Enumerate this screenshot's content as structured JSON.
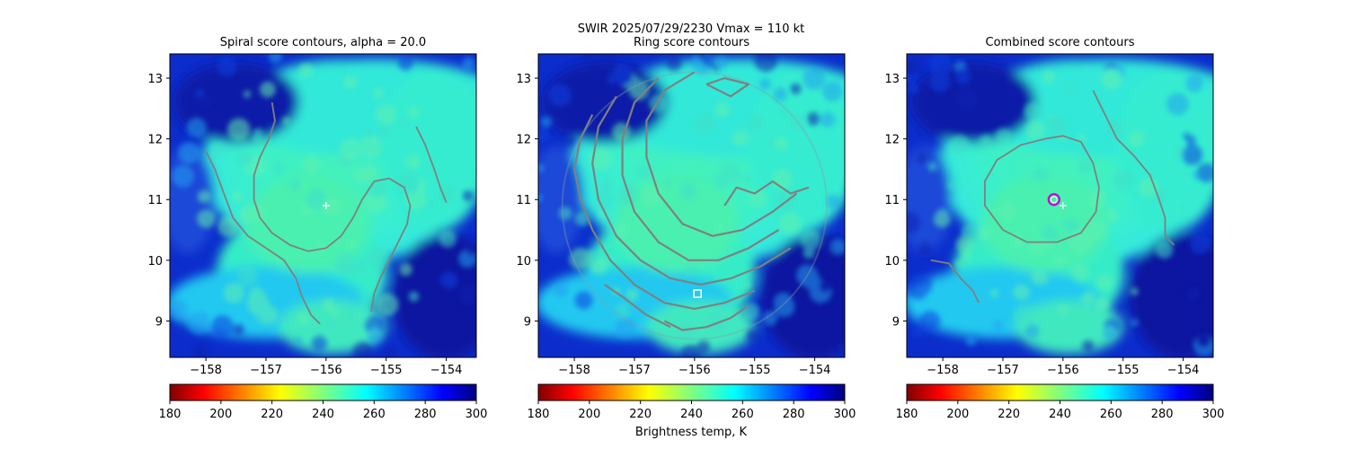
{
  "suptitle": {
    "line1": "SWIR  2025/07/29/2230    Vmax = 110 kt",
    "line2": "Ring score contours"
  },
  "colorbar_label": "Brightness temp, K",
  "colors": {
    "center_marker": "#ffffff",
    "ring_marker": "#cc00cc",
    "contour": "#808080",
    "axis": "#000000"
  },
  "chart_data": [
    {
      "type": "heatmap",
      "title": "Spiral score contours, alpha = 20.0",
      "xlim": [
        -158.6,
        -153.5
      ],
      "ylim": [
        8.4,
        13.4
      ],
      "xticks": [
        -158,
        -157,
        -156,
        -155,
        -154
      ],
      "xtick_labels": [
        "−158",
        "−157",
        "−156",
        "−155",
        "−154"
      ],
      "yticks": [
        9,
        10,
        11,
        12,
        13
      ],
      "ytick_labels": [
        "9",
        "10",
        "11",
        "12",
        "13"
      ],
      "colorbar": {
        "range": [
          180,
          300
        ],
        "ticks": [
          "180",
          "200",
          "220",
          "240",
          "260",
          "280",
          "300"
        ],
        "cmap": "jet_r"
      },
      "markers": [
        {
          "kind": "plus",
          "x": -156.0,
          "y": 10.9
        }
      ],
      "contours": [
        [
          [
            -156.9,
            12.6
          ],
          [
            -156.85,
            12.3
          ],
          [
            -156.95,
            12.0
          ],
          [
            -157.1,
            11.7
          ],
          [
            -157.2,
            11.4
          ],
          [
            -157.2,
            11.0
          ],
          [
            -157.1,
            10.7
          ],
          [
            -156.9,
            10.45
          ],
          [
            -156.6,
            10.25
          ],
          [
            -156.3,
            10.15
          ],
          [
            -156.0,
            10.2
          ],
          [
            -155.75,
            10.4
          ],
          [
            -155.55,
            10.7
          ],
          [
            -155.4,
            11.0
          ],
          [
            -155.2,
            11.3
          ],
          [
            -154.95,
            11.35
          ],
          [
            -154.7,
            11.2
          ],
          [
            -154.6,
            10.9
          ],
          [
            -154.65,
            10.6
          ],
          [
            -154.8,
            10.3
          ],
          [
            -154.95,
            10.0
          ],
          [
            -155.1,
            9.7
          ],
          [
            -155.2,
            9.45
          ],
          [
            -155.25,
            9.15
          ]
        ],
        [
          [
            -158.0,
            11.8
          ],
          [
            -157.85,
            11.5
          ],
          [
            -157.7,
            11.1
          ],
          [
            -157.55,
            10.7
          ],
          [
            -157.3,
            10.4
          ],
          [
            -157.0,
            10.2
          ],
          [
            -156.7,
            10.0
          ],
          [
            -156.5,
            9.7
          ],
          [
            -156.4,
            9.4
          ],
          [
            -156.25,
            9.1
          ],
          [
            -156.1,
            8.95
          ]
        ],
        [
          [
            -154.5,
            12.2
          ],
          [
            -154.35,
            11.9
          ],
          [
            -154.2,
            11.5
          ],
          [
            -154.1,
            11.2
          ],
          [
            -154.0,
            10.95
          ]
        ]
      ]
    },
    {
      "type": "heatmap",
      "title": "Ring score contours",
      "xlim": [
        -158.6,
        -153.5
      ],
      "ylim": [
        8.4,
        13.4
      ],
      "xticks": [
        -158,
        -157,
        -156,
        -155,
        -154
      ],
      "xtick_labels": [
        "−158",
        "−157",
        "−156",
        "−155",
        "−154"
      ],
      "yticks": [
        9,
        10,
        11,
        12,
        13
      ],
      "ytick_labels": [
        "9",
        "10",
        "11",
        "12",
        "13"
      ],
      "colorbar": {
        "range": [
          180,
          300
        ],
        "ticks": [
          "180",
          "200",
          "220",
          "240",
          "260",
          "280",
          "300"
        ],
        "cmap": "jet_r"
      },
      "ring_region": {
        "center_x": -156.0,
        "center_y": 10.9,
        "radius_deg": 2.2
      },
      "markers": [
        {
          "kind": "square",
          "x": -155.95,
          "y": 9.45
        }
      ],
      "contours": [
        [
          [
            -157.7,
            12.4
          ],
          [
            -157.9,
            12.0
          ],
          [
            -158.0,
            11.5
          ],
          [
            -157.9,
            11.0
          ],
          [
            -157.7,
            10.5
          ],
          [
            -157.4,
            10.0
          ],
          [
            -157.0,
            9.6
          ],
          [
            -156.5,
            9.3
          ],
          [
            -156.0,
            9.2
          ],
          [
            -155.5,
            9.3
          ],
          [
            -155.0,
            9.5
          ]
        ],
        [
          [
            -157.3,
            12.7
          ],
          [
            -157.6,
            12.2
          ],
          [
            -157.7,
            11.6
          ],
          [
            -157.6,
            11.0
          ],
          [
            -157.3,
            10.4
          ],
          [
            -156.9,
            10.0
          ],
          [
            -156.4,
            9.7
          ],
          [
            -155.9,
            9.6
          ],
          [
            -155.4,
            9.7
          ],
          [
            -154.9,
            9.9
          ],
          [
            -154.4,
            10.2
          ]
        ],
        [
          [
            -156.6,
            13.0
          ],
          [
            -157.0,
            12.6
          ],
          [
            -157.2,
            12.0
          ],
          [
            -157.2,
            11.4
          ],
          [
            -157.0,
            10.8
          ],
          [
            -156.6,
            10.3
          ],
          [
            -156.1,
            10.0
          ],
          [
            -155.6,
            10.0
          ],
          [
            -155.1,
            10.2
          ],
          [
            -154.6,
            10.5
          ]
        ],
        [
          [
            -156.0,
            13.1
          ],
          [
            -156.5,
            12.8
          ],
          [
            -156.8,
            12.3
          ],
          [
            -156.8,
            11.7
          ],
          [
            -156.6,
            11.1
          ],
          [
            -156.2,
            10.6
          ],
          [
            -155.7,
            10.4
          ],
          [
            -155.2,
            10.5
          ],
          [
            -154.7,
            10.8
          ],
          [
            -154.3,
            11.1
          ]
        ],
        [
          [
            -155.5,
            10.9
          ],
          [
            -155.3,
            11.2
          ],
          [
            -155.0,
            11.1
          ],
          [
            -154.7,
            11.3
          ],
          [
            -154.4,
            11.1
          ],
          [
            -154.1,
            11.2
          ]
        ],
        [
          [
            -155.8,
            12.9
          ],
          [
            -155.4,
            12.7
          ],
          [
            -155.1,
            12.9
          ],
          [
            -155.5,
            13.0
          ],
          [
            -155.8,
            12.9
          ]
        ],
        [
          [
            -156.5,
            9.0
          ],
          [
            -156.2,
            8.85
          ],
          [
            -155.8,
            8.9
          ],
          [
            -155.4,
            9.05
          ],
          [
            -155.1,
            9.25
          ]
        ],
        [
          [
            -157.5,
            9.6
          ],
          [
            -157.2,
            9.4
          ],
          [
            -156.8,
            9.1
          ],
          [
            -156.4,
            8.9
          ]
        ]
      ]
    },
    {
      "type": "heatmap",
      "title": "Combined score contours",
      "xlim": [
        -158.6,
        -153.5
      ],
      "ylim": [
        8.4,
        13.4
      ],
      "xticks": [
        -158,
        -157,
        -156,
        -155,
        -154
      ],
      "xtick_labels": [
        "−158",
        "−157",
        "−156",
        "−155",
        "−154"
      ],
      "yticks": [
        9,
        10,
        11,
        12,
        13
      ],
      "ytick_labels": [
        "9",
        "10",
        "11",
        "12",
        "13"
      ],
      "colorbar": {
        "range": [
          180,
          300
        ],
        "ticks": [
          "180",
          "200",
          "220",
          "240",
          "260",
          "280",
          "300"
        ],
        "cmap": "jet_r"
      },
      "markers": [
        {
          "kind": "plus",
          "x": -156.0,
          "y": 10.9
        },
        {
          "kind": "circle",
          "x": -156.15,
          "y": 11.0
        }
      ],
      "contours": [
        [
          [
            -156.3,
            12.0
          ],
          [
            -156.0,
            12.05
          ],
          [
            -155.7,
            11.95
          ],
          [
            -155.5,
            11.6
          ],
          [
            -155.4,
            11.2
          ],
          [
            -155.45,
            10.8
          ],
          [
            -155.7,
            10.45
          ],
          [
            -156.1,
            10.3
          ],
          [
            -156.6,
            10.3
          ],
          [
            -157.0,
            10.5
          ],
          [
            -157.3,
            10.9
          ],
          [
            -157.3,
            11.3
          ],
          [
            -157.1,
            11.65
          ],
          [
            -156.7,
            11.9
          ],
          [
            -156.3,
            12.0
          ]
        ],
        [
          [
            -155.5,
            12.8
          ],
          [
            -155.3,
            12.4
          ],
          [
            -155.1,
            12.0
          ],
          [
            -154.8,
            11.7
          ],
          [
            -154.55,
            11.4
          ],
          [
            -154.4,
            11.0
          ],
          [
            -154.3,
            10.7
          ],
          [
            -154.3,
            10.4
          ],
          [
            -154.15,
            10.25
          ]
        ],
        [
          [
            -158.2,
            10.0
          ],
          [
            -157.9,
            9.95
          ],
          [
            -157.7,
            9.7
          ],
          [
            -157.5,
            9.5
          ],
          [
            -157.4,
            9.3
          ]
        ]
      ]
    }
  ]
}
